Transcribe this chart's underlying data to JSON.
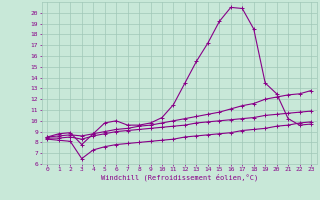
{
  "xlabel": "Windchill (Refroidissement éolien,°C)",
  "xlim": [
    -0.5,
    23.5
  ],
  "ylim": [
    6,
    21
  ],
  "xticks": [
    0,
    1,
    2,
    3,
    4,
    5,
    6,
    7,
    8,
    9,
    10,
    11,
    12,
    13,
    14,
    15,
    16,
    17,
    18,
    19,
    20,
    21,
    22,
    23
  ],
  "yticks": [
    6,
    7,
    8,
    9,
    10,
    11,
    12,
    13,
    14,
    15,
    16,
    17,
    18,
    19,
    20
  ],
  "bg_color": "#c8e8d8",
  "grid_color": "#a0c8b8",
  "line_color": "#880088",
  "line_width": 0.8,
  "marker": "+",
  "marker_size": 3,
  "marker_edge_width": 0.7,
  "series": [
    {
      "x": [
        0,
        1,
        2,
        3,
        4,
        5,
        6,
        7,
        8,
        9,
        10,
        11,
        12,
        13,
        14,
        15,
        16,
        17,
        18,
        19,
        20,
        21,
        22,
        23
      ],
      "y": [
        8.5,
        8.8,
        8.9,
        7.8,
        8.8,
        9.8,
        10.0,
        9.6,
        9.6,
        9.8,
        10.3,
        11.5,
        13.5,
        15.5,
        17.2,
        19.2,
        20.5,
        20.4,
        18.5,
        13.5,
        12.5,
        10.2,
        9.6,
        9.7
      ]
    },
    {
      "x": [
        0,
        1,
        2,
        3,
        4,
        5,
        6,
        7,
        8,
        9,
        10,
        11,
        12,
        13,
        14,
        15,
        16,
        17,
        18,
        19,
        20,
        21,
        22,
        23
      ],
      "y": [
        8.5,
        8.6,
        8.7,
        8.6,
        8.8,
        9.0,
        9.2,
        9.3,
        9.5,
        9.6,
        9.8,
        10.0,
        10.2,
        10.4,
        10.6,
        10.8,
        11.1,
        11.4,
        11.6,
        12.0,
        12.2,
        12.4,
        12.5,
        12.8
      ]
    },
    {
      "x": [
        0,
        1,
        2,
        3,
        4,
        5,
        6,
        7,
        8,
        9,
        10,
        11,
        12,
        13,
        14,
        15,
        16,
        17,
        18,
        19,
        20,
        21,
        22,
        23
      ],
      "y": [
        8.3,
        8.2,
        8.1,
        6.5,
        7.3,
        7.6,
        7.8,
        7.9,
        8.0,
        8.1,
        8.2,
        8.3,
        8.5,
        8.6,
        8.7,
        8.8,
        8.9,
        9.1,
        9.2,
        9.3,
        9.5,
        9.6,
        9.8,
        9.9
      ]
    },
    {
      "x": [
        0,
        1,
        2,
        3,
        4,
        5,
        6,
        7,
        8,
        9,
        10,
        11,
        12,
        13,
        14,
        15,
        16,
        17,
        18,
        19,
        20,
        21,
        22,
        23
      ],
      "y": [
        8.4,
        8.4,
        8.5,
        8.3,
        8.6,
        8.8,
        9.0,
        9.1,
        9.2,
        9.3,
        9.4,
        9.5,
        9.6,
        9.8,
        9.9,
        10.0,
        10.1,
        10.2,
        10.3,
        10.5,
        10.6,
        10.7,
        10.8,
        10.9
      ]
    }
  ]
}
